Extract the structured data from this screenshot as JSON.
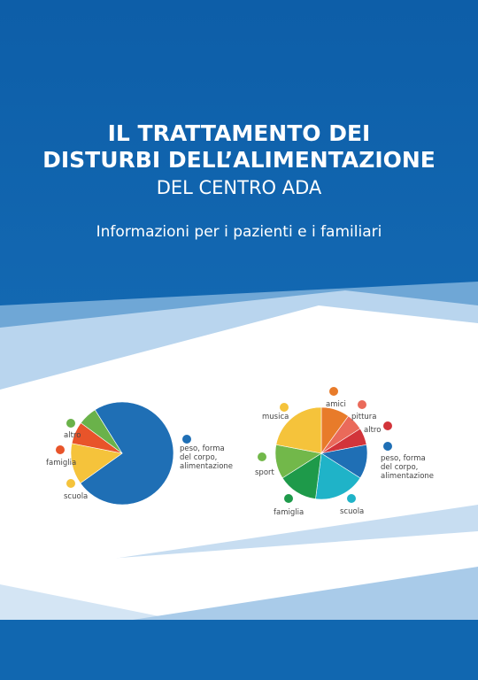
{
  "title_lines": [
    "IL TRATTAMENTO DEI",
    "DISTURBI DELL’ALIMENTAZIONE"
  ],
  "subtitle": "DEL CENTRO ADA",
  "tagline": "Informazioni per i pazienti e i familiari",
  "chart_data": [
    {
      "type": "pie",
      "categories": [
        "peso, forma del corpo, alimentazione",
        "scuola",
        "famiglia",
        "altro"
      ],
      "values": [
        74,
        13,
        7,
        6
      ],
      "colors": [
        "#1f6fb5",
        "#f5c33b",
        "#e8542a",
        "#6ab24a"
      ]
    },
    {
      "type": "pie",
      "categories": [
        "amici",
        "pittura",
        "altro",
        "peso, forma del corpo, alimentazione",
        "scuola",
        "famiglia",
        "sport",
        "musica"
      ],
      "values": [
        10,
        6,
        6,
        12,
        18,
        14,
        12,
        22
      ],
      "colors": [
        "#e87b2a",
        "#ea6a5a",
        "#d2343a",
        "#1f6fb5",
        "#1fb3c8",
        "#1e9a4a",
        "#72b84a",
        "#f5c33b"
      ]
    }
  ]
}
